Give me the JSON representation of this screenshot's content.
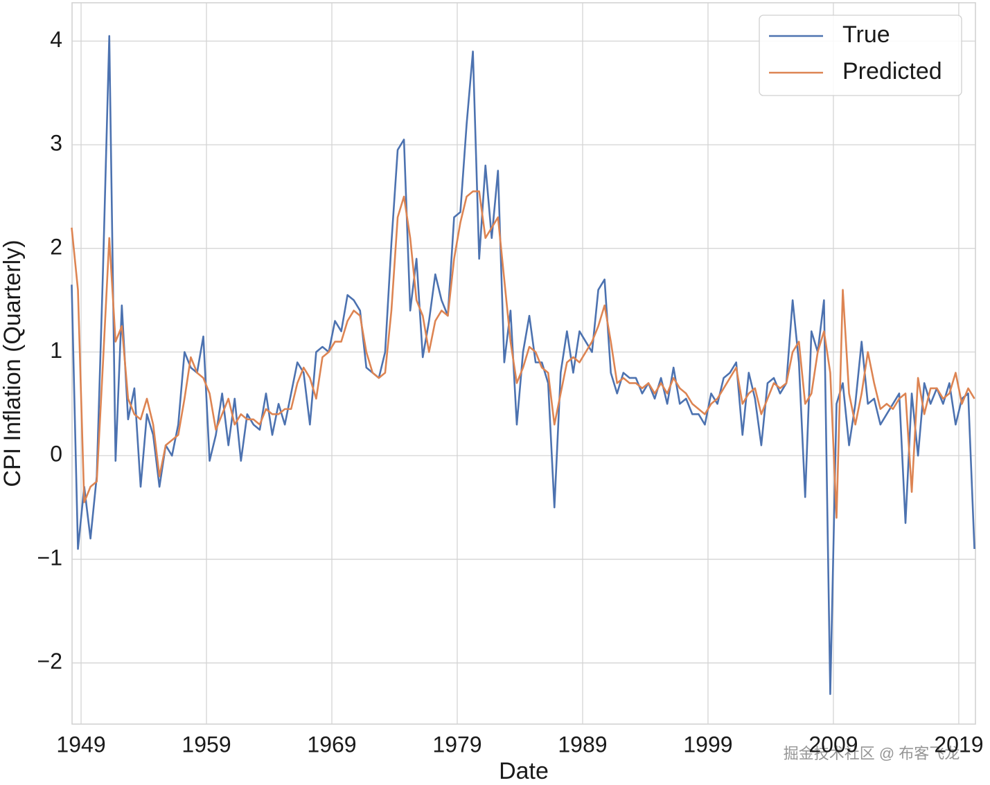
{
  "chart_data": {
    "type": "line",
    "xlabel": "Date",
    "ylabel": "CPI Inflation (Quarterly)",
    "watermark": "掘金技术社区 @ 布客飞龙",
    "xlim": [
      1948.28,
      2020.33
    ],
    "ylim": [
      -2.59,
      4.37
    ],
    "xticks": [
      1949,
      1959,
      1969,
      1979,
      1989,
      1999,
      2009,
      2019
    ],
    "yticks": [
      {
        "value": -2,
        "label": "−2"
      },
      {
        "value": -1,
        "label": "−1"
      },
      0,
      1,
      2,
      3,
      4
    ],
    "grid": true,
    "legend": "upper right",
    "x": [
      1948.25,
      1948.75,
      1949.25,
      1949.75,
      1950.25,
      1950.75,
      1951.25,
      1951.75,
      1952.25,
      1952.75,
      1953.25,
      1953.75,
      1954.25,
      1954.75,
      1955.25,
      1955.75,
      1956.25,
      1956.75,
      1957.25,
      1957.75,
      1958.25,
      1958.75,
      1959.25,
      1959.75,
      1960.25,
      1960.75,
      1961.25,
      1961.75,
      1962.25,
      1962.75,
      1963.25,
      1963.75,
      1964.25,
      1964.75,
      1965.25,
      1965.75,
      1966.25,
      1966.75,
      1967.25,
      1967.75,
      1968.25,
      1968.75,
      1969.25,
      1969.75,
      1970.25,
      1970.75,
      1971.25,
      1971.75,
      1972.25,
      1972.75,
      1973.25,
      1973.75,
      1974.25,
      1974.75,
      1975.25,
      1975.75,
      1976.25,
      1976.75,
      1977.25,
      1977.75,
      1978.25,
      1978.75,
      1979.25,
      1979.75,
      1980.25,
      1980.75,
      1981.25,
      1981.75,
      1982.25,
      1982.75,
      1983.25,
      1983.75,
      1984.25,
      1984.75,
      1985.25,
      1985.75,
      1986.25,
      1986.75,
      1987.25,
      1987.75,
      1988.25,
      1988.75,
      1989.25,
      1989.75,
      1990.25,
      1990.75,
      1991.25,
      1991.75,
      1992.25,
      1992.75,
      1993.25,
      1993.75,
      1994.25,
      1994.75,
      1995.25,
      1995.75,
      1996.25,
      1996.75,
      1997.25,
      1997.75,
      1998.25,
      1998.75,
      1999.25,
      1999.75,
      2000.25,
      2000.75,
      2001.25,
      2001.75,
      2002.25,
      2002.75,
      2003.25,
      2003.75,
      2004.25,
      2004.75,
      2005.25,
      2005.75,
      2006.25,
      2006.75,
      2007.25,
      2007.75,
      2008.25,
      2008.75,
      2009.25,
      2009.75,
      2010.25,
      2010.75,
      2011.25,
      2011.75,
      2012.25,
      2012.75,
      2013.25,
      2013.75,
      2014.25,
      2014.75,
      2015.25,
      2015.75,
      2016.25,
      2016.75,
      2017.25,
      2017.75,
      2018.25,
      2018.75,
      2019.25,
      2019.75,
      2020.25
    ],
    "series": [
      {
        "name": "True",
        "color": "#4c72b0",
        "values": [
          1.65,
          -0.9,
          -0.3,
          -0.8,
          -0.2,
          1.8,
          4.05,
          -0.05,
          1.45,
          0.35,
          0.65,
          -0.3,
          0.4,
          0.2,
          -0.3,
          0.1,
          0.0,
          0.3,
          1.0,
          0.85,
          0.8,
          1.15,
          -0.05,
          0.2,
          0.6,
          0.1,
          0.55,
          -0.05,
          0.4,
          0.3,
          0.25,
          0.6,
          0.2,
          0.5,
          0.3,
          0.6,
          0.9,
          0.8,
          0.3,
          1.0,
          1.05,
          1.0,
          1.3,
          1.2,
          1.55,
          1.5,
          1.4,
          0.85,
          0.8,
          0.75,
          1.0,
          2.05,
          2.95,
          3.05,
          1.4,
          1.9,
          0.95,
          1.3,
          1.75,
          1.5,
          1.35,
          2.3,
          2.35,
          3.2,
          3.9,
          1.9,
          2.8,
          2.1,
          2.75,
          0.9,
          1.4,
          0.3,
          1.0,
          1.35,
          0.9,
          0.9,
          0.7,
          -0.5,
          0.8,
          1.2,
          0.8,
          1.2,
          1.1,
          1.0,
          1.6,
          1.7,
          0.8,
          0.6,
          0.8,
          0.75,
          0.75,
          0.6,
          0.7,
          0.55,
          0.75,
          0.5,
          0.85,
          0.5,
          0.55,
          0.4,
          0.4,
          0.3,
          0.6,
          0.5,
          0.75,
          0.8,
          0.9,
          0.2,
          0.8,
          0.55,
          0.1,
          0.7,
          0.75,
          0.6,
          0.7,
          1.5,
          0.9,
          -0.4,
          1.2,
          1.0,
          1.5,
          -2.3,
          0.5,
          0.7,
          0.1,
          0.5,
          1.1,
          0.5,
          0.55,
          0.3,
          0.4,
          0.5,
          0.6,
          -0.65,
          0.6,
          0.0,
          0.7,
          0.5,
          0.65,
          0.5,
          0.7,
          0.3,
          0.55,
          0.6,
          -0.9
        ]
      },
      {
        "name": "Predicted",
        "color": "#dd8452",
        "values": [
          2.2,
          1.6,
          -0.45,
          -0.3,
          -0.25,
          0.9,
          2.1,
          1.1,
          1.25,
          0.55,
          0.4,
          0.35,
          0.55,
          0.3,
          -0.2,
          0.1,
          0.15,
          0.2,
          0.55,
          0.95,
          0.8,
          0.75,
          0.6,
          0.25,
          0.4,
          0.55,
          0.3,
          0.4,
          0.35,
          0.35,
          0.3,
          0.45,
          0.4,
          0.4,
          0.45,
          0.45,
          0.7,
          0.85,
          0.75,
          0.55,
          0.95,
          1.0,
          1.1,
          1.1,
          1.3,
          1.4,
          1.35,
          1.0,
          0.8,
          0.75,
          0.8,
          1.4,
          2.3,
          2.5,
          2.1,
          1.5,
          1.35,
          1.0,
          1.3,
          1.4,
          1.35,
          1.9,
          2.25,
          2.5,
          2.55,
          2.55,
          2.1,
          2.2,
          2.3,
          1.7,
          1.1,
          0.7,
          0.85,
          1.05,
          1.0,
          0.85,
          0.8,
          0.3,
          0.6,
          0.9,
          0.95,
          0.9,
          1.0,
          1.1,
          1.25,
          1.45,
          1.1,
          0.7,
          0.75,
          0.7,
          0.7,
          0.65,
          0.7,
          0.6,
          0.7,
          0.6,
          0.75,
          0.65,
          0.6,
          0.5,
          0.45,
          0.4,
          0.5,
          0.55,
          0.65,
          0.75,
          0.85,
          0.5,
          0.6,
          0.65,
          0.4,
          0.55,
          0.7,
          0.65,
          0.7,
          1.0,
          1.1,
          0.5,
          0.6,
          1.0,
          1.2,
          0.8,
          -0.6,
          1.6,
          0.6,
          0.3,
          0.6,
          1.0,
          0.7,
          0.45,
          0.5,
          0.45,
          0.55,
          0.6,
          -0.35,
          0.75,
          0.4,
          0.65,
          0.65,
          0.55,
          0.6,
          0.8,
          0.5,
          0.65,
          0.55
        ]
      }
    ]
  }
}
